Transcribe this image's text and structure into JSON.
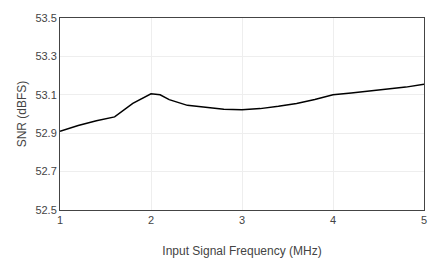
{
  "chart_data": {
    "type": "line",
    "x": [
      1.0,
      1.2,
      1.4,
      1.6,
      1.8,
      2.0,
      2.1,
      2.2,
      2.4,
      2.6,
      2.8,
      3.0,
      3.2,
      3.4,
      3.6,
      3.8,
      4.0,
      4.2,
      4.4,
      4.6,
      4.8,
      5.0
    ],
    "values": [
      52.91,
      52.94,
      52.965,
      52.985,
      53.055,
      53.105,
      53.1,
      53.075,
      53.045,
      53.035,
      53.025,
      53.022,
      53.028,
      53.04,
      53.055,
      53.075,
      53.1,
      53.11,
      53.12,
      53.13,
      53.14,
      53.155
    ],
    "color": "#000000",
    "xlabel": "Input Signal Frequency (MHz)",
    "ylabel": "SNR (dBFS)",
    "xlim": [
      1,
      5
    ],
    "ylim": [
      52.5,
      53.5
    ],
    "xticks": [
      1,
      2,
      3,
      4,
      5
    ],
    "yticks": [
      52.5,
      52.7,
      52.9,
      53.1,
      53.3,
      53.5
    ],
    "grid": true
  }
}
